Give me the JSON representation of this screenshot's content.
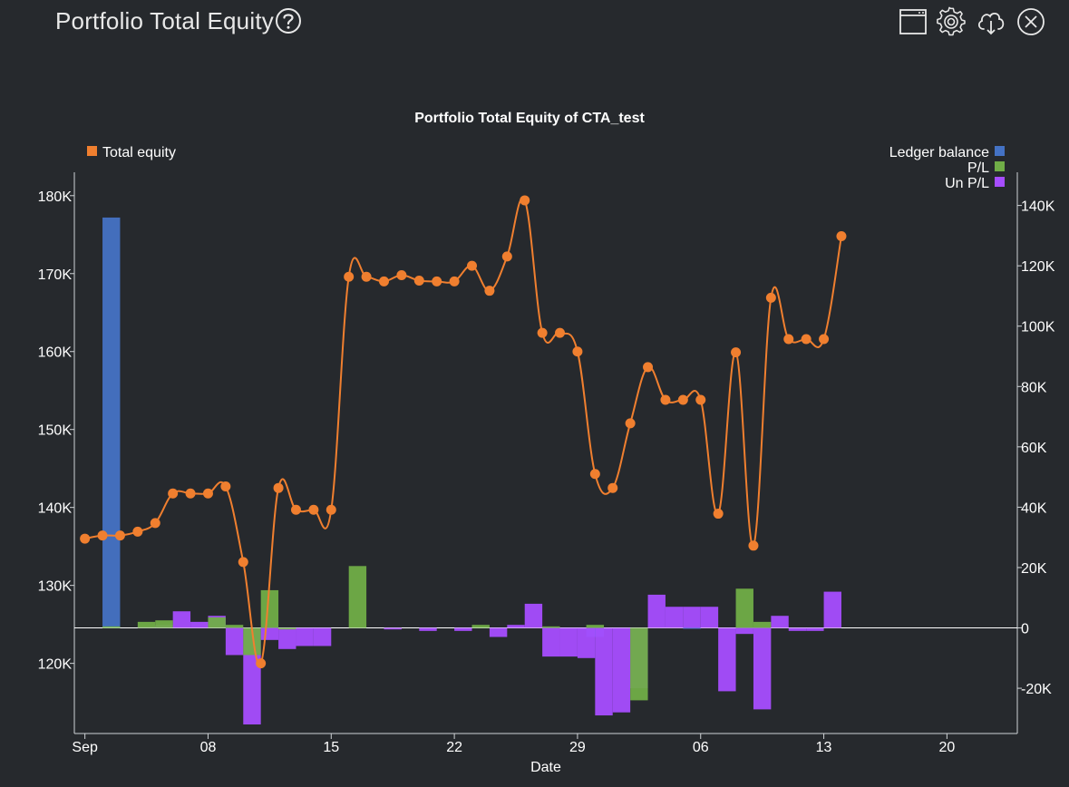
{
  "page": {
    "title": "Portfolio Total Equity"
  },
  "toolbar": {
    "icons": [
      "window-icon",
      "gear-icon",
      "cloud-download-icon",
      "close-icon"
    ]
  },
  "chart_data": {
    "type": "bar+line",
    "title": "Portfolio Total Equity of CTA_test",
    "xlabel": "Date",
    "x_ticks": [
      "Sep",
      "08",
      "15",
      "22",
      "29",
      "06",
      "13",
      "20"
    ],
    "x_tick_days": [
      1,
      8,
      15,
      22,
      29,
      36,
      43,
      50
    ],
    "x_range_days": [
      0.4,
      54
    ],
    "left_axis": {
      "ticks": [
        "120K",
        "130K",
        "140K",
        "150K",
        "160K",
        "170K",
        "180K"
      ],
      "tick_values": [
        120000,
        130000,
        140000,
        150000,
        160000,
        170000,
        180000
      ],
      "range": [
        111000,
        183000
      ]
    },
    "right_axis": {
      "ticks": [
        "-20K",
        "0",
        "20K",
        "40K",
        "60K",
        "80K",
        "100K",
        "120K",
        "140K"
      ],
      "tick_values": [
        -20000,
        0,
        20000,
        40000,
        60000,
        80000,
        100000,
        120000,
        140000
      ],
      "range": [
        -35000,
        151000
      ]
    },
    "legend_left": [
      {
        "name": "Total equity",
        "color": "#f07f2f"
      }
    ],
    "legend_right": [
      {
        "name": "Ledger balance",
        "color": "#4472c4"
      },
      {
        "name": "P/L",
        "color": "#70ad47"
      },
      {
        "name": "Un P/L",
        "color": "#a64dff"
      }
    ],
    "colors": {
      "total_equity": "#f07f2f",
      "ledger_balance": "#4472c4",
      "pl": "#70ad47",
      "unpl": "#a64dff"
    },
    "total_equity": [
      {
        "day": 1,
        "value": 136000
      },
      {
        "day": 2,
        "value": 136400
      },
      {
        "day": 3,
        "value": 136400
      },
      {
        "day": 4,
        "value": 136900
      },
      {
        "day": 5,
        "value": 138000
      },
      {
        "day": 6,
        "value": 141800
      },
      {
        "day": 7,
        "value": 141800
      },
      {
        "day": 8,
        "value": 141800
      },
      {
        "day": 9,
        "value": 142700
      },
      {
        "day": 10,
        "value": 133000
      },
      {
        "day": 11,
        "value": 120000
      },
      {
        "day": 12,
        "value": 142500
      },
      {
        "day": 13,
        "value": 139700
      },
      {
        "day": 14,
        "value": 139700
      },
      {
        "day": 15,
        "value": 139700
      },
      {
        "day": 16,
        "value": 169600
      },
      {
        "day": 17,
        "value": 169600
      },
      {
        "day": 18,
        "value": 169000
      },
      {
        "day": 19,
        "value": 169800
      },
      {
        "day": 20,
        "value": 169100
      },
      {
        "day": 21,
        "value": 169000
      },
      {
        "day": 22,
        "value": 169000
      },
      {
        "day": 23,
        "value": 171000
      },
      {
        "day": 24,
        "value": 167800
      },
      {
        "day": 25,
        "value": 172200
      },
      {
        "day": 26,
        "value": 179400
      },
      {
        "day": 27,
        "value": 162400
      },
      {
        "day": 28,
        "value": 162400
      },
      {
        "day": 29,
        "value": 160000
      },
      {
        "day": 30,
        "value": 144300
      },
      {
        "day": 31,
        "value": 142500
      },
      {
        "day": 32,
        "value": 150800
      },
      {
        "day": 33,
        "value": 158000
      },
      {
        "day": 34,
        "value": 153800
      },
      {
        "day": 35,
        "value": 153800
      },
      {
        "day": 36,
        "value": 153800
      },
      {
        "day": 37,
        "value": 139200
      },
      {
        "day": 38,
        "value": 159900
      },
      {
        "day": 39,
        "value": 135100
      },
      {
        "day": 40,
        "value": 166900
      },
      {
        "day": 41,
        "value": 161600
      },
      {
        "day": 42,
        "value": 161600
      },
      {
        "day": 43,
        "value": 161600
      },
      {
        "day": 44,
        "value": 174800
      }
    ],
    "ledger_balance": [
      {
        "day": 2.5,
        "value": 136000
      },
      {
        "day": 30,
        "value": -3000
      },
      {
        "day": 35.5,
        "value": 0
      }
    ],
    "pl": [
      {
        "day": 2.5,
        "value": 500
      },
      {
        "day": 4.5,
        "value": 2000
      },
      {
        "day": 5.5,
        "value": 2500
      },
      {
        "day": 8.5,
        "value": 3500
      },
      {
        "day": 9.5,
        "value": 1000
      },
      {
        "day": 10.5,
        "value": -9000
      },
      {
        "day": 11.5,
        "value": 12500
      },
      {
        "day": 12.5,
        "value": -500
      },
      {
        "day": 16.5,
        "value": 20500
      },
      {
        "day": 23.5,
        "value": 1000
      },
      {
        "day": 27.5,
        "value": 500
      },
      {
        "day": 30,
        "value": 1000
      },
      {
        "day": 32.5,
        "value": -24000
      },
      {
        "day": 38.5,
        "value": 13000
      },
      {
        "day": 39.5,
        "value": 2000
      }
    ],
    "unpl": [
      {
        "day": 4.5,
        "value": 500
      },
      {
        "day": 5.5,
        "value": 1000
      },
      {
        "day": 6.5,
        "value": 5500
      },
      {
        "day": 7.5,
        "value": 2000
      },
      {
        "day": 8.5,
        "value": 4000
      },
      {
        "day": 9.5,
        "value": -9000
      },
      {
        "day": 10.5,
        "value": -32000
      },
      {
        "day": 11.5,
        "value": -4000
      },
      {
        "day": 12.5,
        "value": -7000
      },
      {
        "day": 13.5,
        "value": -6000
      },
      {
        "day": 14.5,
        "value": -6000
      },
      {
        "day": 18.5,
        "value": -500
      },
      {
        "day": 20.5,
        "value": -1000
      },
      {
        "day": 22.5,
        "value": -1000
      },
      {
        "day": 24.5,
        "value": -3000
      },
      {
        "day": 25.5,
        "value": 1000
      },
      {
        "day": 26.5,
        "value": 8000
      },
      {
        "day": 27.5,
        "value": -9500
      },
      {
        "day": 28.5,
        "value": -9500
      },
      {
        "day": 29.5,
        "value": -10000
      },
      {
        "day": 30.5,
        "value": -29000
      },
      {
        "day": 31.5,
        "value": -28000
      },
      {
        "day": 32.5,
        "value": -20000
      },
      {
        "day": 33.5,
        "value": 11000
      },
      {
        "day": 34.5,
        "value": 7000
      },
      {
        "day": 35.5,
        "value": 7000
      },
      {
        "day": 36.5,
        "value": 7000
      },
      {
        "day": 37.5,
        "value": -21000
      },
      {
        "day": 38.5,
        "value": -2000
      },
      {
        "day": 39.5,
        "value": -27000
      },
      {
        "day": 40.5,
        "value": 4000
      },
      {
        "day": 41.5,
        "value": -1000
      },
      {
        "day": 42.5,
        "value": -1000
      },
      {
        "day": 43.5,
        "value": 12000
      }
    ]
  }
}
